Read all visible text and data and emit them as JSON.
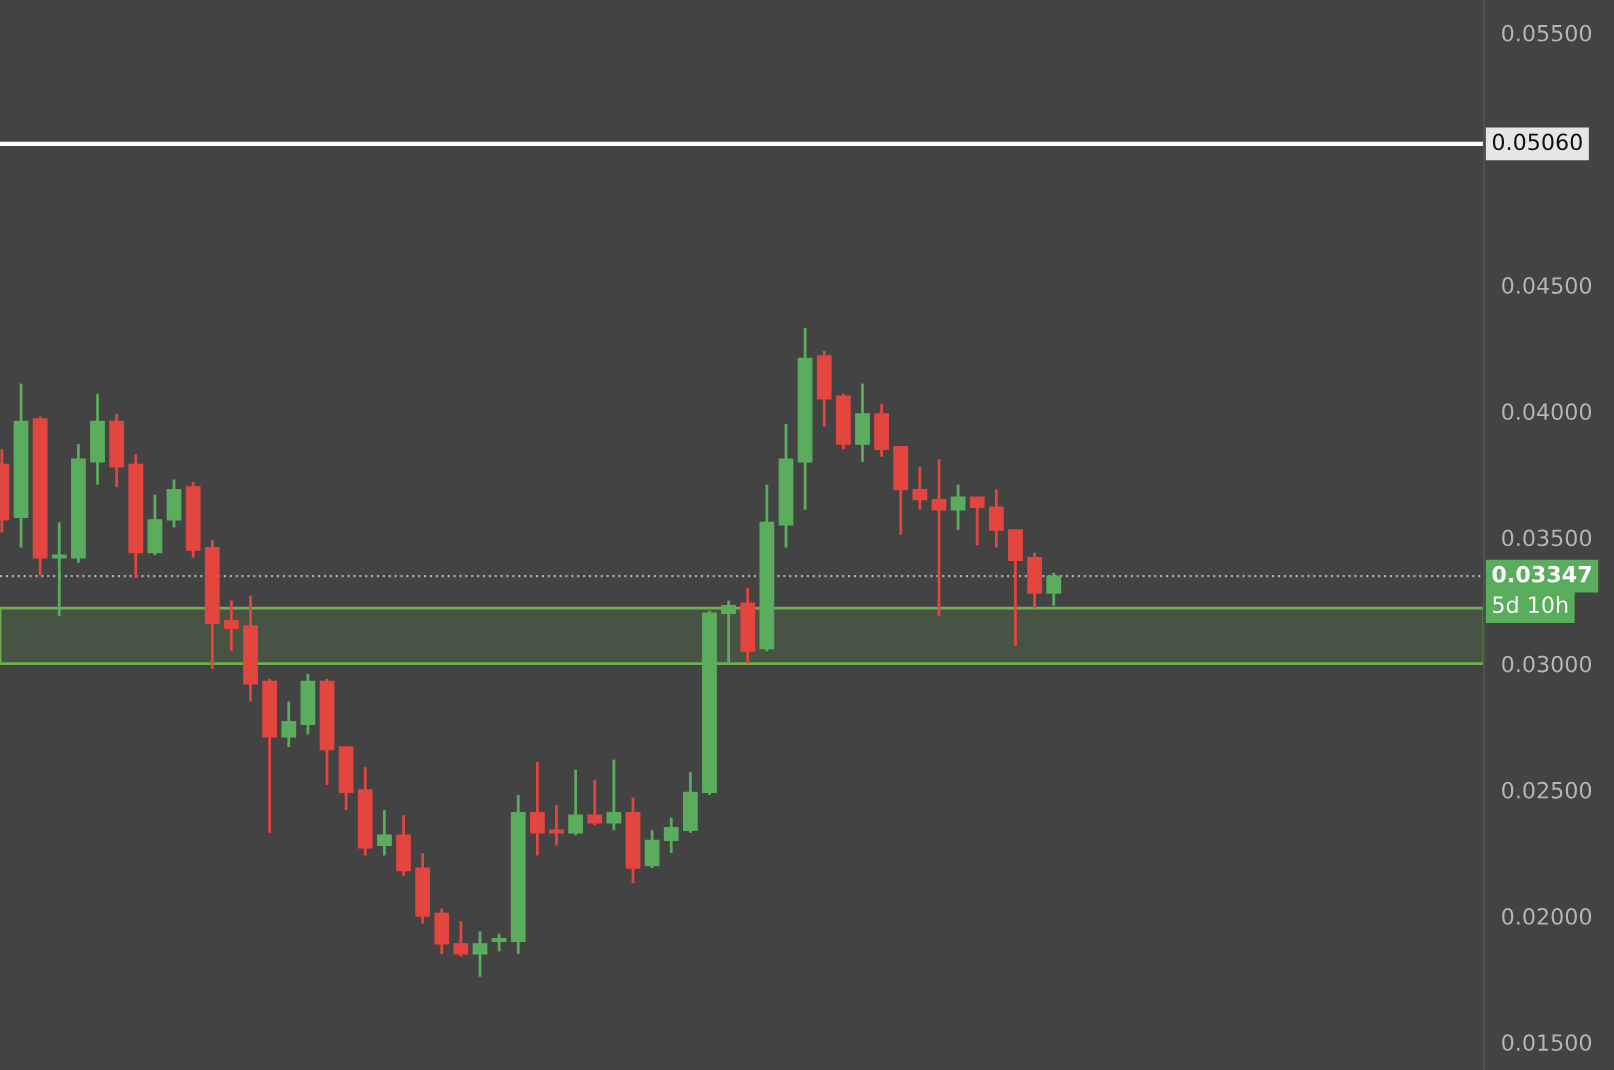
{
  "chart_data": {
    "type": "candlestick",
    "categories": [
      null,
      null,
      null,
      null,
      null,
      null,
      null,
      null,
      null,
      null,
      null,
      null,
      null,
      null,
      null,
      null,
      null,
      null,
      null,
      null,
      null,
      null,
      null,
      null,
      null,
      null,
      null,
      null,
      null,
      null,
      null,
      null,
      null,
      null,
      null,
      null,
      null,
      null,
      null,
      null,
      null,
      null,
      null,
      null,
      null,
      null,
      null,
      null,
      null,
      null,
      null,
      null,
      null,
      null,
      null,
      null,
      null,
      null,
      null,
      null,
      null,
      null,
      null,
      null,
      null,
      null,
      null,
      null,
      null,
      null,
      null,
      null,
      null,
      null,
      null,
      null,
      null,
      null
    ],
    "ohlc": [
      [
        0.0379,
        0.0385,
        0.0352,
        0.0357
      ],
      [
        0.0358,
        0.0411,
        0.0346,
        0.0396
      ],
      [
        0.0397,
        0.0398,
        0.0335,
        0.0342
      ],
      [
        0.0342,
        0.0356,
        0.0319,
        0.0343
      ],
      [
        0.0342,
        0.0387,
        0.034,
        0.0381
      ],
      [
        0.038,
        0.0407,
        0.0371,
        0.0396
      ],
      [
        0.0396,
        0.0399,
        0.037,
        0.0378
      ],
      [
        0.0379,
        0.0383,
        0.0334,
        0.0344
      ],
      [
        0.0344,
        0.0367,
        0.0343,
        0.0357
      ],
      [
        0.0357,
        0.0373,
        0.0354,
        0.0369
      ],
      [
        0.037,
        0.0372,
        0.0342,
        0.0345
      ],
      [
        0.0346,
        0.0349,
        0.0298,
        0.0316
      ],
      [
        0.0317,
        0.0325,
        0.0305,
        0.0314
      ],
      [
        0.0315,
        0.0327,
        0.0285,
        0.0292
      ],
      [
        0.0293,
        0.0294,
        0.0233,
        0.0271
      ],
      [
        0.0271,
        0.0285,
        0.0267,
        0.0277
      ],
      [
        0.0276,
        0.0296,
        0.0272,
        0.0293
      ],
      [
        0.0293,
        0.0294,
        0.0252,
        0.0266
      ],
      [
        0.0267,
        0.0267,
        0.0242,
        0.0249
      ],
      [
        0.025,
        0.0259,
        0.0224,
        0.0227
      ],
      [
        0.0228,
        0.0242,
        0.0224,
        0.0232
      ],
      [
        0.0232,
        0.024,
        0.0216,
        0.0218
      ],
      [
        0.0219,
        0.0225,
        0.0197,
        0.02
      ],
      [
        0.0201,
        0.0203,
        0.0185,
        0.0189
      ],
      [
        0.0189,
        0.0198,
        0.0184,
        0.0185
      ],
      [
        0.0185,
        0.0194,
        0.0176,
        0.0189
      ],
      [
        0.019,
        0.0193,
        0.0186,
        0.0191
      ],
      [
        0.019,
        0.0248,
        0.0185,
        0.0241
      ],
      [
        0.0241,
        0.0261,
        0.0224,
        0.0233
      ],
      [
        0.0234,
        0.0244,
        0.0228,
        0.0233
      ],
      [
        0.0233,
        0.0258,
        0.0232,
        0.024
      ],
      [
        0.024,
        0.0254,
        0.0236,
        0.0237
      ],
      [
        0.0237,
        0.0262,
        0.0234,
        0.0241
      ],
      [
        0.0241,
        0.0247,
        0.0213,
        0.0219
      ],
      [
        0.022,
        0.0234,
        0.0219,
        0.023
      ],
      [
        0.023,
        0.0239,
        0.0225,
        0.0235
      ],
      [
        0.0234,
        0.0257,
        0.0233,
        0.0249
      ],
      [
        0.0249,
        0.0321,
        0.0248,
        0.032
      ],
      [
        0.032,
        0.0325,
        0.03,
        0.0323
      ],
      [
        0.0324,
        0.033,
        0.03,
        0.0305
      ],
      [
        0.0306,
        0.0371,
        0.0305,
        0.0356
      ],
      [
        0.0355,
        0.0395,
        0.0346,
        0.0381
      ],
      [
        0.038,
        0.0433,
        0.0361,
        0.0421
      ],
      [
        0.0422,
        0.0424,
        0.0394,
        0.0405
      ],
      [
        0.0406,
        0.0407,
        0.0385,
        0.0387
      ],
      [
        0.0387,
        0.0411,
        0.038,
        0.0399
      ],
      [
        0.0399,
        0.0403,
        0.0382,
        0.0385
      ],
      [
        0.0386,
        0.0386,
        0.0351,
        0.0369
      ],
      [
        0.0369,
        0.0378,
        0.0361,
        0.0365
      ],
      [
        0.0365,
        0.0381,
        0.0319,
        0.0361
      ],
      [
        0.0361,
        0.0371,
        0.0353,
        0.0366
      ],
      [
        0.0366,
        0.0366,
        0.0347,
        0.0362
      ],
      [
        0.0362,
        0.0369,
        0.0346,
        0.0353
      ],
      [
        0.0353,
        0.0353,
        0.0307,
        0.0341
      ],
      [
        0.0342,
        0.0344,
        0.0322,
        0.0328
      ],
      [
        0.0328,
        0.0336,
        0.0323,
        0.03347
      ],
      null,
      null,
      null,
      null,
      null,
      null,
      null,
      null,
      null,
      null,
      null,
      null,
      null,
      null,
      null,
      null,
      null,
      null,
      null,
      null,
      null,
      null
    ],
    "colors": [
      "#e2463f",
      "#5aad5c",
      "#e2463f",
      "#5aad5c",
      "#5aad5c",
      "#5aad5c",
      "#e2463f",
      "#e2463f",
      "#5aad5c",
      "#5aad5c",
      "#e2463f",
      "#e2463f",
      "#e2463f",
      "#e2463f",
      "#e2463f",
      "#5aad5c",
      "#5aad5c",
      "#e2463f",
      "#e2463f",
      "#e2463f",
      "#5aad5c",
      "#e2463f",
      "#e2463f",
      "#e2463f",
      "#e2463f",
      "#5aad5c",
      "#5aad5c",
      "#5aad5c",
      "#e2463f",
      "#e2463f",
      "#5aad5c",
      "#e2463f",
      "#5aad5c",
      "#e2463f",
      "#5aad5c",
      "#5aad5c",
      "#5aad5c",
      "#5aad5c",
      "#5aad5c",
      "#e2463f",
      "#5aad5c",
      "#5aad5c",
      "#5aad5c",
      "#e2463f",
      "#e2463f",
      "#5aad5c",
      "#e2463f",
      "#e2463f",
      "#e2463f",
      "#e2463f",
      "#5aad5c",
      "#e2463f",
      "#e2463f",
      "#e2463f",
      "#e2463f",
      "#5aad5c",
      null,
      null,
      null,
      null,
      null,
      null,
      null,
      null,
      null,
      null,
      null,
      null,
      null,
      null,
      null,
      null,
      null,
      null,
      null,
      null,
      null,
      null
    ],
    "ylim": [
      0.0139,
      0.0563
    ],
    "yticks": [
      {
        "value": 0.015,
        "label": "0.01500"
      },
      {
        "value": 0.02,
        "label": "0.02000"
      },
      {
        "value": 0.025,
        "label": "0.02500"
      },
      {
        "value": 0.03,
        "label": "0.03000"
      },
      {
        "value": 0.035,
        "label": "0.03500"
      },
      {
        "value": 0.04,
        "label": "0.04000"
      },
      {
        "value": 0.045,
        "label": "0.04500"
      },
      {
        "value": 0.055,
        "label": "0.05500"
      }
    ],
    "tick_labels": "y",
    "ref_lines": [
      {
        "axis": "y",
        "value": 0.0506,
        "label": "0.05060",
        "color": "#ffffff",
        "line_style": "solid"
      },
      {
        "axis": "y",
        "value": 0.03347,
        "label": "0.03347",
        "color": "#aaaaaa",
        "line_style": "dotted"
      }
    ],
    "bands": [
      {
        "axis": "y",
        "from": 0.03,
        "to": 0.0322,
        "color": "#6ab04c"
      }
    ],
    "annotations": [
      "5d 10h"
    ]
  }
}
